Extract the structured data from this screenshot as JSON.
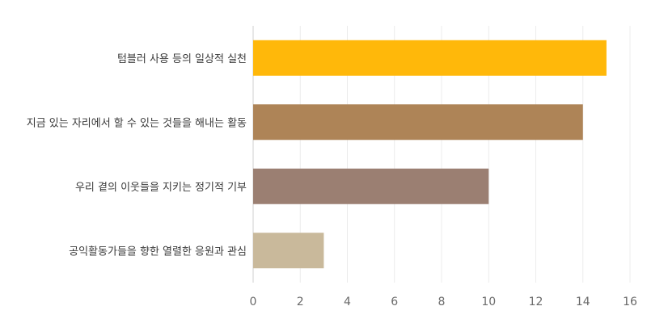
{
  "chart_data": {
    "type": "bar",
    "orientation": "horizontal",
    "title": "",
    "xlabel": "",
    "ylabel": "",
    "categories": [
      "텀블러 사용 등의 일상적 실천",
      "지금 있는 자리에서 할 수 있는 것들을 해내는 활동",
      "우리 곁의 이웃들을 지키는 정기적 기부",
      "공익활동가들을 향한 열렬한 응원과 관심"
    ],
    "values": [
      15,
      14,
      10,
      3
    ],
    "colors": [
      "#FFB80A",
      "#AE8457",
      "#9B7F72",
      "#C9B99B"
    ],
    "xlim": [
      0,
      16
    ],
    "xticks": [
      0,
      2,
      4,
      6,
      8,
      10,
      12,
      14,
      16
    ],
    "xtick_labels": [
      "0",
      "2",
      "4",
      "6",
      "8",
      "10",
      "12",
      "14",
      "16"
    ],
    "grid": "vertical",
    "legend": "none"
  }
}
